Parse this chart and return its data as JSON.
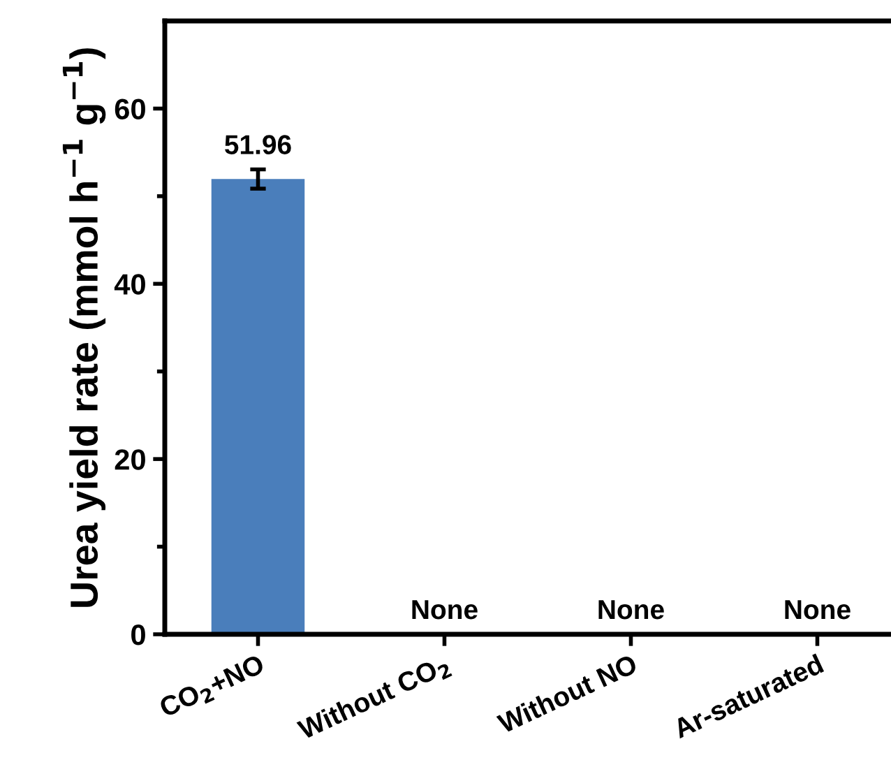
{
  "chart_data": {
    "type": "bar",
    "ylabel": "Urea yield rate (mmol h$^{−1}$ g$^{−1}$)",
    "categories": [
      "CO$_{2}$+NO",
      "Without CO$_{2}$",
      "Without NO",
      "Ar-saturated"
    ],
    "values": [
      51.96,
      null,
      null,
      null
    ],
    "errors": [
      1.1,
      null,
      null,
      null
    ],
    "value_labels": [
      "51.96",
      "None",
      "None",
      "None"
    ],
    "color": "#4a7ebb",
    "ylim": [
      0,
      70
    ],
    "yticks": [
      0,
      {
        "value": 10,
        "label": null
      },
      20,
      {
        "value": 30,
        "label": null
      },
      40,
      {
        "value": 50,
        "label": null
      },
      60
    ],
    "grid": false
  }
}
